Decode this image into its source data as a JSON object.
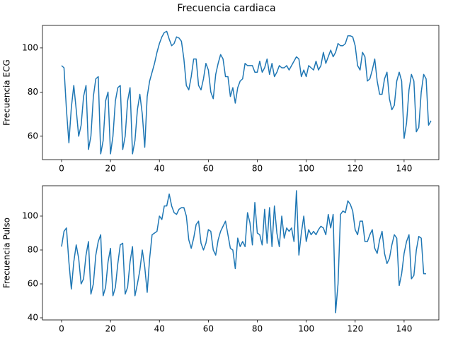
{
  "title": "Frecuencia cardiaca",
  "chart_data": [
    {
      "type": "line",
      "ylabel": "Frecuencia ECG",
      "color": "#1f77b4",
      "xlim": [
        -7.8,
        154.2
      ],
      "xticks": [
        0,
        20,
        40,
        60,
        80,
        100,
        120,
        140
      ],
      "ylim": [
        49.4,
        110.2
      ],
      "yticks": [
        60,
        80,
        100
      ],
      "x": [
        0,
        1,
        2,
        3,
        4,
        5,
        6,
        7,
        8,
        9,
        10,
        11,
        12,
        13,
        14,
        15,
        16,
        17,
        18,
        19,
        20,
        21,
        22,
        23,
        24,
        25,
        26,
        27,
        28,
        29,
        30,
        31,
        32,
        33,
        34,
        35,
        36,
        37,
        38,
        39,
        40,
        41,
        42,
        43,
        44,
        45,
        46,
        47,
        48,
        49,
        50,
        51,
        52,
        53,
        54,
        55,
        56,
        57,
        58,
        59,
        60,
        61,
        62,
        63,
        64,
        65,
        66,
        67,
        68,
        69,
        70,
        71,
        72,
        73,
        74,
        75,
        76,
        77,
        78,
        79,
        80,
        81,
        82,
        83,
        84,
        85,
        86,
        87,
        88,
        89,
        90,
        91,
        92,
        93,
        94,
        95,
        96,
        97,
        98,
        99,
        100,
        101,
        102,
        103,
        104,
        105,
        106,
        107,
        108,
        109,
        110,
        111,
        112,
        113,
        114,
        115,
        116,
        117,
        118,
        119,
        120,
        121,
        122,
        123,
        124,
        125,
        126,
        127,
        128,
        129,
        130,
        131,
        132,
        133,
        134,
        135,
        136,
        137,
        138,
        139,
        140,
        141,
        142,
        143,
        144,
        145,
        146,
        147,
        148,
        149,
        150,
        151
      ],
      "values": [
        92,
        91,
        72,
        57,
        73,
        83,
        72,
        60,
        65,
        78,
        83,
        54,
        60,
        78,
        86,
        87,
        52,
        58,
        76,
        80,
        52,
        60,
        76,
        82,
        83,
        54,
        60,
        76,
        82,
        52,
        58,
        72,
        79,
        70,
        55,
        78,
        85,
        89,
        93,
        98,
        102,
        105,
        107,
        107.5,
        104,
        101,
        102,
        105,
        104.5,
        103,
        95,
        83,
        81,
        87,
        95,
        95,
        83,
        81,
        86,
        93,
        90,
        80,
        77,
        88,
        93,
        97,
        95,
        87,
        87,
        78,
        82,
        75,
        82,
        85,
        86,
        93,
        92,
        92,
        92,
        89,
        89,
        94,
        89,
        91,
        95,
        88,
        93,
        87,
        89,
        92,
        91,
        91,
        92,
        90,
        92,
        94,
        96,
        95,
        87,
        90,
        87,
        92,
        91,
        90,
        94,
        90,
        92,
        98,
        93,
        96,
        99,
        96,
        98,
        102,
        101,
        101,
        102,
        105.5,
        105.5,
        105,
        101,
        92,
        90,
        98,
        96,
        85,
        86,
        90,
        95,
        85,
        79,
        79,
        86,
        89,
        77,
        72,
        74,
        85,
        89,
        85,
        59,
        66,
        81,
        88,
        85,
        62,
        64,
        80,
        88,
        86,
        65,
        67
      ]
    },
    {
      "type": "line",
      "ylabel": "Frecuencia Pulso",
      "color": "#1f77b4",
      "xlim": [
        -7.8,
        154.2
      ],
      "xticks": [
        0,
        20,
        40,
        60,
        80,
        100,
        120,
        140
      ],
      "ylim": [
        38.75,
        117.9
      ],
      "yticks": [
        40,
        60,
        80,
        100
      ],
      "x": [
        0,
        1,
        2,
        3,
        4,
        5,
        6,
        7,
        8,
        9,
        10,
        11,
        12,
        13,
        14,
        15,
        16,
        17,
        18,
        19,
        20,
        21,
        22,
        23,
        24,
        25,
        26,
        27,
        28,
        29,
        30,
        31,
        32,
        33,
        34,
        35,
        36,
        37,
        38,
        39,
        40,
        41,
        42,
        43,
        44,
        45,
        46,
        47,
        48,
        49,
        50,
        51,
        52,
        53,
        54,
        55,
        56,
        57,
        58,
        59,
        60,
        61,
        62,
        63,
        64,
        65,
        66,
        67,
        68,
        69,
        70,
        71,
        72,
        73,
        74,
        75,
        76,
        77,
        78,
        79,
        80,
        81,
        82,
        83,
        84,
        85,
        86,
        87,
        88,
        89,
        90,
        91,
        92,
        93,
        94,
        95,
        96,
        97,
        98,
        99,
        100,
        101,
        102,
        103,
        104,
        105,
        106,
        107,
        108,
        109,
        110,
        111,
        112,
        113,
        114,
        115,
        116,
        117,
        118,
        119,
        120,
        121,
        122,
        123,
        124,
        125,
        126,
        127,
        128,
        129,
        130,
        131,
        132,
        133,
        134,
        135,
        136,
        137,
        138,
        139,
        140,
        141,
        142,
        143,
        144,
        145,
        146,
        147,
        148,
        149
      ],
      "values": [
        82,
        91,
        93,
        73,
        57,
        73,
        83,
        75,
        60,
        63,
        77,
        85,
        54,
        60,
        77,
        85,
        89,
        53,
        58,
        73,
        81,
        53,
        58,
        72,
        83,
        84,
        54,
        58,
        73,
        82,
        53,
        60,
        68,
        80,
        70,
        55,
        75,
        89,
        90,
        91,
        100,
        98,
        106,
        106,
        113,
        106,
        102,
        101,
        104,
        105,
        105,
        100,
        86,
        81,
        87,
        95,
        97,
        84,
        80,
        84,
        92,
        91,
        80,
        77,
        86,
        91,
        94,
        97,
        89,
        81,
        80,
        69,
        87,
        82,
        85,
        82,
        102,
        96,
        83,
        108,
        90,
        89,
        83,
        104,
        84,
        105,
        82,
        106,
        90,
        82,
        100,
        87,
        93,
        91,
        93,
        85,
        115,
        77,
        90,
        100,
        85,
        92,
        89,
        91,
        89,
        92,
        94,
        93,
        89,
        101,
        93,
        101,
        43,
        60,
        101,
        103,
        102,
        109,
        107,
        103,
        92,
        89,
        97,
        97,
        85,
        85,
        89,
        92,
        81,
        78,
        86,
        91,
        78,
        72,
        75,
        83,
        89,
        87,
        59,
        66,
        78,
        85,
        89,
        63,
        65,
        80,
        88,
        87,
        66,
        66
      ]
    }
  ]
}
